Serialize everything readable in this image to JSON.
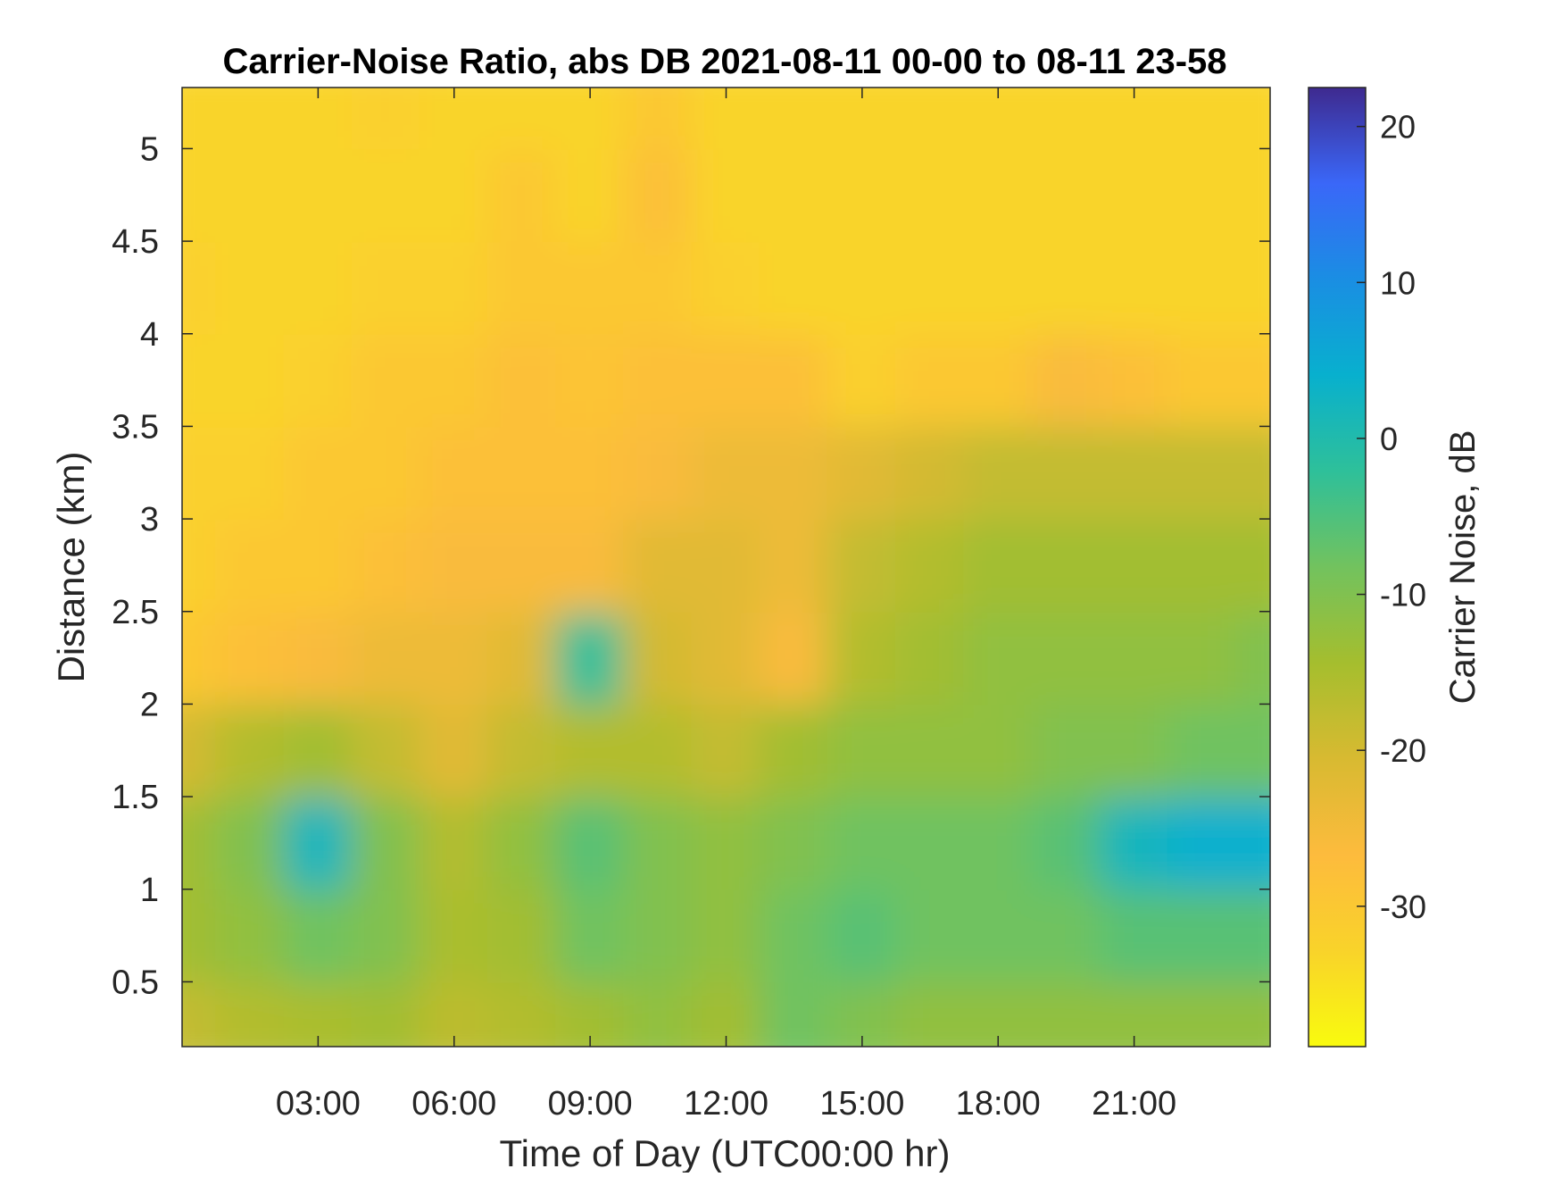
{
  "chart_data": {
    "type": "heatmap",
    "title": "Carrier-Noise Ratio, abs DB 2021-08-11 00-00 to 08-11 23-58",
    "xlabel": "Time of Day (UTC00:00 hr)",
    "ylabel": "Distance (km)",
    "colorbar_label": "Carrier Noise, dB",
    "x_range_hours": [
      0,
      24
    ],
    "y_range_km": [
      0.15,
      5.33
    ],
    "c_range_db": [
      -39,
      22.5
    ],
    "colormap": "parula-reversed",
    "grid": false,
    "x_ticks": [
      {
        "value": 3,
        "label": "03:00"
      },
      {
        "value": 6,
        "label": "06:00"
      },
      {
        "value": 9,
        "label": "09:00"
      },
      {
        "value": 12,
        "label": "12:00"
      },
      {
        "value": 15,
        "label": "15:00"
      },
      {
        "value": 18,
        "label": "18:00"
      },
      {
        "value": 21,
        "label": "21:00"
      }
    ],
    "y_ticks": [
      {
        "value": 0.5,
        "label": "0.5"
      },
      {
        "value": 1,
        "label": "1"
      },
      {
        "value": 1.5,
        "label": "1.5"
      },
      {
        "value": 2,
        "label": "2"
      },
      {
        "value": 2.5,
        "label": "2.5"
      },
      {
        "value": 3,
        "label": "3"
      },
      {
        "value": 3.5,
        "label": "3.5"
      },
      {
        "value": 4,
        "label": "4"
      },
      {
        "value": 4.5,
        "label": "4.5"
      },
      {
        "value": 5,
        "label": "5"
      }
    ],
    "c_ticks": [
      {
        "value": 20,
        "label": "20"
      },
      {
        "value": 10,
        "label": "10"
      },
      {
        "value": 0,
        "label": "0"
      },
      {
        "value": -10,
        "label": "-10"
      },
      {
        "value": -20,
        "label": "-20"
      },
      {
        "value": -30,
        "label": "-30"
      }
    ],
    "hours": [
      0,
      1.5,
      3,
      4.5,
      6,
      7.5,
      9,
      10.5,
      12,
      13.5,
      15,
      16.5,
      18,
      19.5,
      21,
      22.5,
      24
    ],
    "distances_km": [
      0.25,
      0.75,
      1.25,
      1.75,
      2.25,
      2.75,
      3.25,
      3.75,
      4.25,
      4.75,
      5.25
    ],
    "values_db": [
      [
        -18,
        -16,
        -15,
        -14,
        -17,
        -16,
        -14,
        -12,
        -14,
        -8,
        -10,
        -12,
        -12,
        -12,
        -12,
        -12,
        -12
      ],
      [
        -14,
        -12,
        -8,
        -10,
        -15,
        -14,
        -8,
        -10,
        -12,
        -8,
        -6,
        -8,
        -8,
        -8,
        -6,
        -6,
        -6
      ],
      [
        -14,
        -10,
        2,
        -10,
        -16,
        -12,
        -6,
        -10,
        -12,
        -10,
        -8,
        -8,
        -8,
        -6,
        2,
        4,
        4
      ],
      [
        -20,
        -16,
        -14,
        -18,
        -22,
        -18,
        -16,
        -16,
        -18,
        -14,
        -12,
        -12,
        -12,
        -10,
        -10,
        -8,
        -8
      ],
      [
        -30,
        -28,
        -26,
        -24,
        -24,
        -22,
        -2,
        -20,
        -22,
        -26,
        -16,
        -14,
        -12,
        -12,
        -12,
        -12,
        -10
      ],
      [
        -32,
        -30,
        -30,
        -28,
        -26,
        -26,
        -26,
        -22,
        -22,
        -24,
        -18,
        -16,
        -14,
        -14,
        -14,
        -14,
        -14
      ],
      [
        -32,
        -32,
        -30,
        -30,
        -28,
        -28,
        -28,
        -26,
        -24,
        -24,
        -22,
        -20,
        -18,
        -18,
        -18,
        -18,
        -18
      ],
      [
        -33,
        -33,
        -32,
        -30,
        -30,
        -28,
        -29,
        -28,
        -28,
        -28,
        -32,
        -30,
        -30,
        -26,
        -28,
        -30,
        -30
      ],
      [
        -32,
        -33,
        -33,
        -32,
        -32,
        -30,
        -30,
        -30,
        -32,
        -33,
        -33,
        -33,
        -33,
        -33,
        -33,
        -33,
        -33
      ],
      [
        -33,
        -33,
        -33,
        -33,
        -33,
        -30,
        -33,
        -28,
        -33,
        -33,
        -33,
        -33,
        -33,
        -33,
        -33,
        -33,
        -33
      ],
      [
        -33,
        -33,
        -33,
        -32,
        -33,
        -33,
        -33,
        -30,
        -33,
        -33,
        -33,
        -33,
        -33,
        -33,
        -33,
        -33,
        -33
      ]
    ]
  }
}
